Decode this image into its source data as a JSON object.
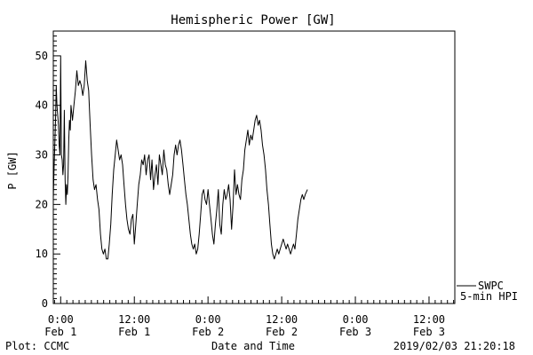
{
  "chart_data": {
    "type": "line",
    "title": "Hemispheric Power [GW]",
    "ylabel": "P [GW]",
    "xlabel": "Date and Time",
    "ylim": [
      0,
      55
    ],
    "yticks": [
      0,
      10,
      20,
      30,
      40,
      50
    ],
    "xlim": [
      -0.05,
      2.675
    ],
    "xunits": "days since Feb 1 0:00",
    "xticks": [
      {
        "x": 0.0,
        "line1": "0:00",
        "line2": "Feb 1"
      },
      {
        "x": 0.5,
        "line1": "12:00",
        "line2": "Feb 1"
      },
      {
        "x": 1.0,
        "line1": "0:00",
        "line2": "Feb 2"
      },
      {
        "x": 1.5,
        "line1": "12:00",
        "line2": "Feb 2"
      },
      {
        "x": 2.0,
        "line1": "0:00",
        "line2": "Feb 3"
      },
      {
        "x": 2.5,
        "line1": "12:00",
        "line2": "Feb 3"
      }
    ],
    "grid": false,
    "legend": {
      "placement": "right-bottom",
      "entries": [
        "SWPC",
        "5-min HPI"
      ]
    },
    "series": [
      {
        "name": "SWPC",
        "points": [
          [
            -0.05,
            21
          ],
          [
            -0.045,
            27
          ],
          [
            -0.04,
            32
          ],
          [
            -0.035,
            37
          ],
          [
            -0.03,
            44
          ],
          [
            -0.025,
            40
          ],
          [
            -0.02,
            38
          ],
          [
            -0.015,
            36
          ],
          [
            -0.01,
            32
          ],
          [
            -0.005,
            30
          ],
          [
            0.0,
            50
          ],
          [
            0.005,
            30
          ],
          [
            0.01,
            29
          ],
          [
            0.015,
            26
          ],
          [
            0.02,
            28
          ],
          [
            0.025,
            39
          ],
          [
            0.03,
            25
          ],
          [
            0.035,
            20
          ],
          [
            0.04,
            24
          ],
          [
            0.045,
            22
          ],
          [
            0.05,
            26
          ],
          [
            0.055,
            33
          ],
          [
            0.06,
            37
          ],
          [
            0.065,
            35
          ],
          [
            0.07,
            40
          ],
          [
            0.08,
            37
          ],
          [
            0.09,
            40
          ],
          [
            0.1,
            43
          ],
          [
            0.11,
            47
          ],
          [
            0.12,
            44
          ],
          [
            0.13,
            45
          ],
          [
            0.14,
            44
          ],
          [
            0.15,
            42
          ],
          [
            0.16,
            44
          ],
          [
            0.17,
            49
          ],
          [
            0.18,
            45
          ],
          [
            0.19,
            43
          ],
          [
            0.2,
            36
          ],
          [
            0.21,
            30
          ],
          [
            0.22,
            25
          ],
          [
            0.23,
            23
          ],
          [
            0.24,
            24
          ],
          [
            0.25,
            21
          ],
          [
            0.26,
            19
          ],
          [
            0.27,
            14
          ],
          [
            0.28,
            11
          ],
          [
            0.29,
            10
          ],
          [
            0.3,
            11
          ],
          [
            0.31,
            9
          ],
          [
            0.32,
            9
          ],
          [
            0.33,
            12
          ],
          [
            0.34,
            16
          ],
          [
            0.35,
            22
          ],
          [
            0.36,
            27
          ],
          [
            0.37,
            30
          ],
          [
            0.38,
            33
          ],
          [
            0.39,
            31
          ],
          [
            0.4,
            29
          ],
          [
            0.41,
            30
          ],
          [
            0.42,
            28
          ],
          [
            0.43,
            24
          ],
          [
            0.44,
            20
          ],
          [
            0.45,
            17
          ],
          [
            0.46,
            15
          ],
          [
            0.47,
            14
          ],
          [
            0.48,
            17
          ],
          [
            0.49,
            18
          ],
          [
            0.5,
            12
          ],
          [
            0.51,
            16
          ],
          [
            0.52,
            20
          ],
          [
            0.53,
            24
          ],
          [
            0.54,
            26
          ],
          [
            0.55,
            29
          ],
          [
            0.56,
            28
          ],
          [
            0.57,
            30
          ],
          [
            0.58,
            26
          ],
          [
            0.59,
            29
          ],
          [
            0.6,
            30
          ],
          [
            0.61,
            25
          ],
          [
            0.62,
            29
          ],
          [
            0.63,
            23
          ],
          [
            0.64,
            26
          ],
          [
            0.65,
            28
          ],
          [
            0.66,
            24
          ],
          [
            0.67,
            30
          ],
          [
            0.68,
            28
          ],
          [
            0.69,
            26
          ],
          [
            0.7,
            31
          ],
          [
            0.71,
            28
          ],
          [
            0.72,
            27
          ],
          [
            0.73,
            24
          ],
          [
            0.74,
            22
          ],
          [
            0.75,
            24
          ],
          [
            0.76,
            26
          ],
          [
            0.77,
            30
          ],
          [
            0.78,
            32
          ],
          [
            0.79,
            30
          ],
          [
            0.8,
            32
          ],
          [
            0.81,
            33
          ],
          [
            0.82,
            31
          ],
          [
            0.83,
            28
          ],
          [
            0.84,
            25
          ],
          [
            0.85,
            22
          ],
          [
            0.86,
            20
          ],
          [
            0.87,
            17
          ],
          [
            0.88,
            14
          ],
          [
            0.89,
            12
          ],
          [
            0.9,
            11
          ],
          [
            0.91,
            12
          ],
          [
            0.92,
            10
          ],
          [
            0.93,
            11
          ],
          [
            0.94,
            14
          ],
          [
            0.95,
            18
          ],
          [
            0.96,
            22
          ],
          [
            0.97,
            23
          ],
          [
            0.98,
            21
          ],
          [
            0.99,
            20
          ],
          [
            1.0,
            23
          ],
          [
            1.01,
            20
          ],
          [
            1.02,
            17
          ],
          [
            1.03,
            14
          ],
          [
            1.04,
            12
          ],
          [
            1.05,
            16
          ],
          [
            1.06,
            19
          ],
          [
            1.07,
            23
          ],
          [
            1.08,
            16
          ],
          [
            1.09,
            14
          ],
          [
            1.1,
            20
          ],
          [
            1.11,
            23
          ],
          [
            1.12,
            21
          ],
          [
            1.13,
            22
          ],
          [
            1.14,
            24
          ],
          [
            1.15,
            21
          ],
          [
            1.16,
            15
          ],
          [
            1.17,
            20
          ],
          [
            1.18,
            27
          ],
          [
            1.19,
            22
          ],
          [
            1.2,
            24
          ],
          [
            1.21,
            22
          ],
          [
            1.22,
            21
          ],
          [
            1.23,
            25
          ],
          [
            1.24,
            27
          ],
          [
            1.25,
            31
          ],
          [
            1.26,
            33
          ],
          [
            1.27,
            35
          ],
          [
            1.28,
            32
          ],
          [
            1.29,
            34
          ],
          [
            1.3,
            33
          ],
          [
            1.31,
            35
          ],
          [
            1.32,
            37
          ],
          [
            1.33,
            38
          ],
          [
            1.34,
            36
          ],
          [
            1.35,
            37
          ],
          [
            1.36,
            35
          ],
          [
            1.37,
            32
          ],
          [
            1.38,
            30
          ],
          [
            1.39,
            27
          ],
          [
            1.4,
            23
          ],
          [
            1.41,
            20
          ],
          [
            1.42,
            16
          ],
          [
            1.43,
            12
          ],
          [
            1.44,
            10
          ],
          [
            1.45,
            9
          ],
          [
            1.46,
            10
          ],
          [
            1.47,
            11
          ],
          [
            1.48,
            10
          ],
          [
            1.49,
            11
          ],
          [
            1.5,
            12
          ],
          [
            1.51,
            13
          ],
          [
            1.52,
            12
          ],
          [
            1.53,
            11
          ],
          [
            1.54,
            12
          ],
          [
            1.55,
            11
          ],
          [
            1.56,
            10
          ],
          [
            1.57,
            11
          ],
          [
            1.58,
            12
          ],
          [
            1.59,
            11
          ],
          [
            1.6,
            14
          ],
          [
            1.61,
            17
          ],
          [
            1.62,
            19
          ],
          [
            1.63,
            21
          ],
          [
            1.64,
            22
          ],
          [
            1.65,
            21
          ],
          [
            1.66,
            22
          ],
          [
            1.675,
            23
          ]
        ]
      }
    ]
  },
  "footer": {
    "left": "Plot: CCMC",
    "right": "2019/02/03 21:20:18"
  },
  "colors": {
    "line": "#000000",
    "background": "#ffffff"
  }
}
